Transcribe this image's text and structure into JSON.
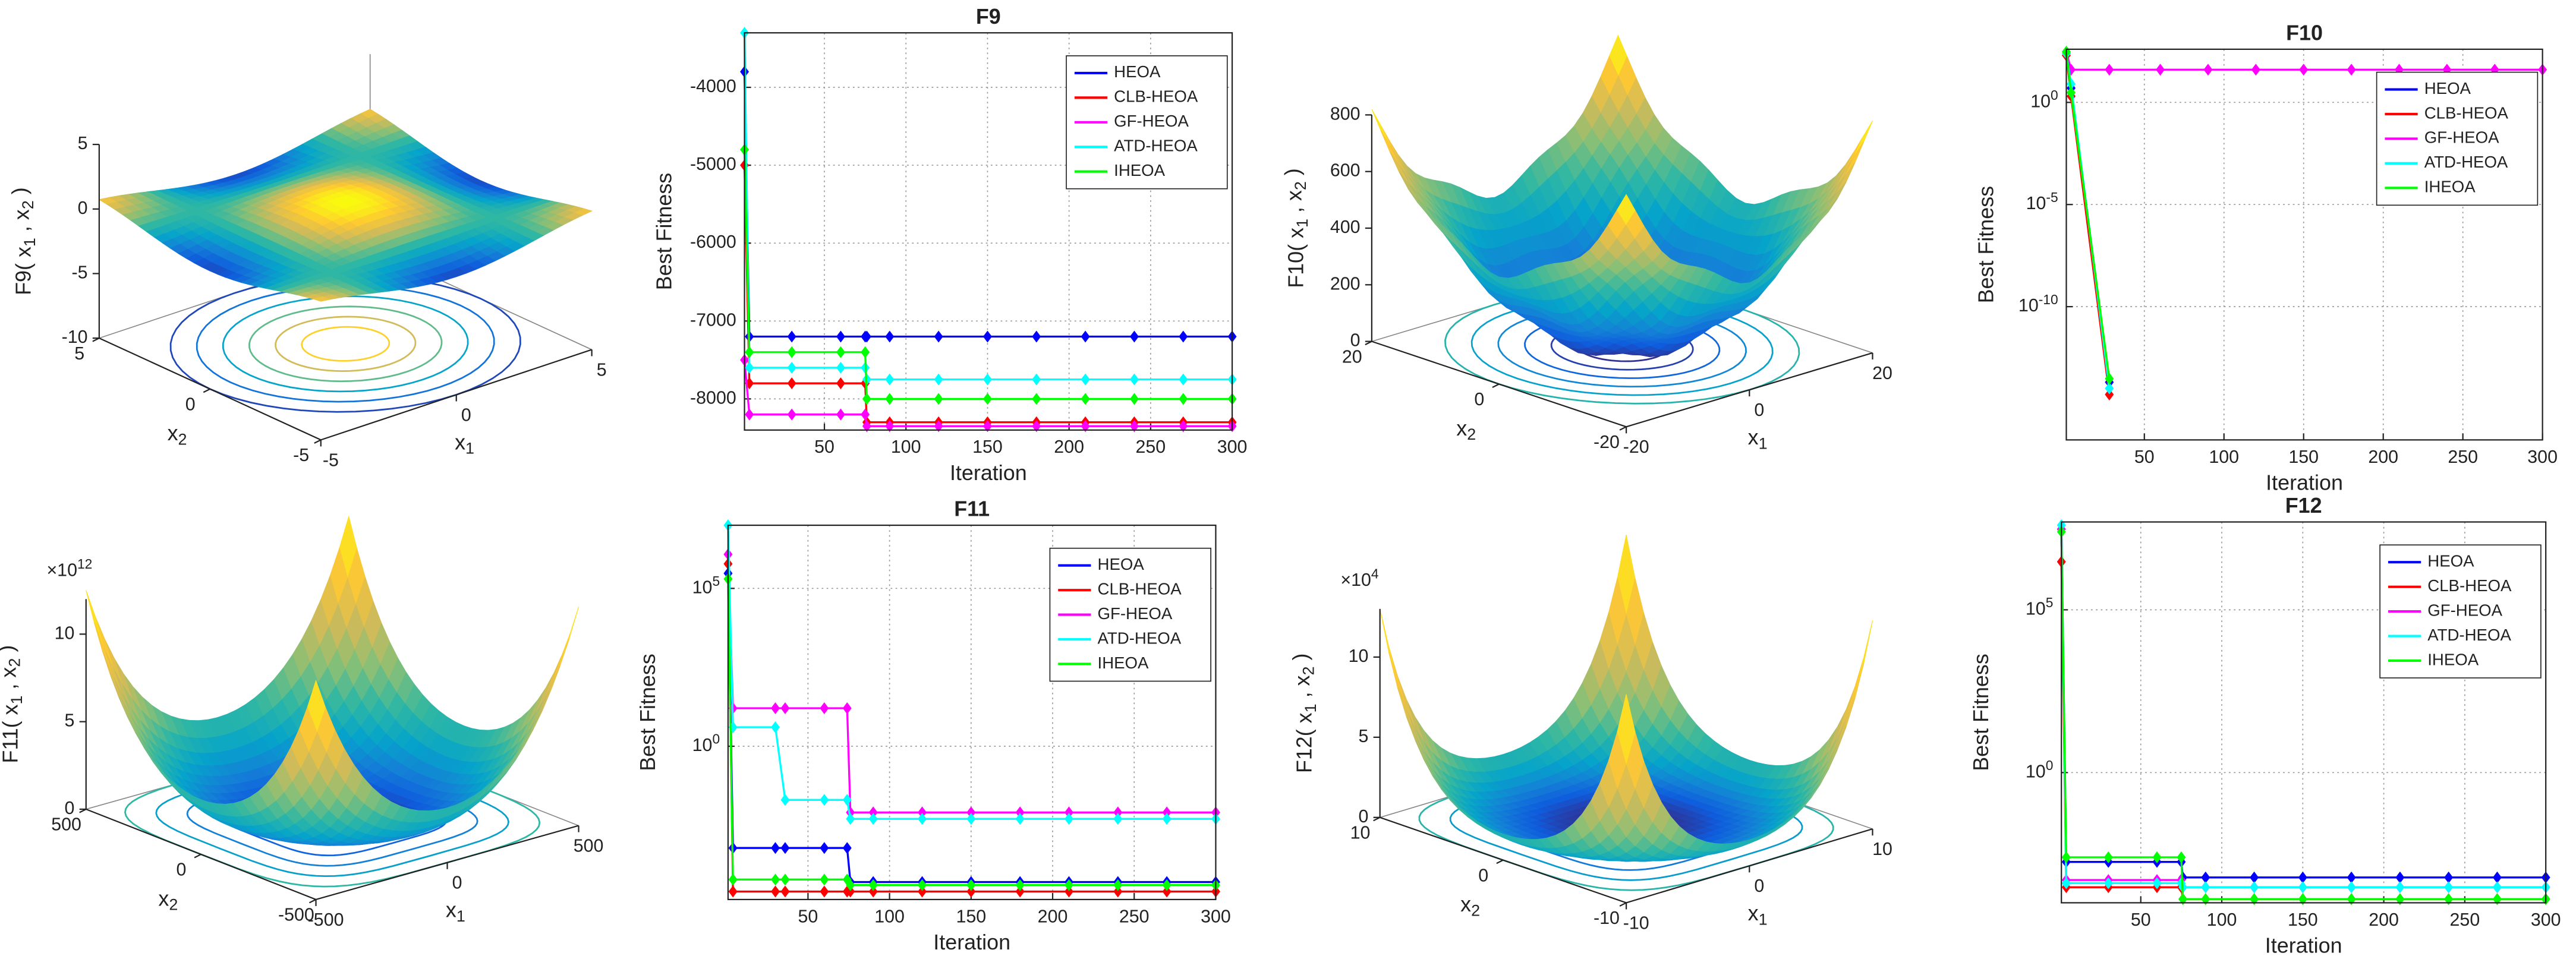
{
  "chart_data": [
    {
      "type": "surface",
      "zlabel": "F9( x_1 , x_2 )",
      "xlabel": "x_1",
      "ylabel": "x_2",
      "xlim": [
        -5,
        5
      ],
      "xticks": [
        -5,
        0,
        5
      ],
      "ylim": [
        -5,
        5
      ],
      "yticks": [
        -5,
        0,
        5
      ],
      "zlim": [
        -10,
        5
      ],
      "zticks": [
        -10,
        -5,
        0,
        5
      ]
    },
    {
      "type": "line",
      "title": "F9",
      "xlabel": "Iteration",
      "ylabel": "Best Fitness",
      "x": [
        1,
        4,
        30,
        60,
        75,
        76,
        90,
        120,
        150,
        180,
        210,
        240,
        270,
        300
      ],
      "xlim": [
        1,
        300
      ],
      "xticks": [
        50,
        100,
        150,
        200,
        250,
        300
      ],
      "ylim": [
        -8400,
        -3300
      ],
      "yticks": [
        -8000,
        -7000,
        -6000,
        -5000,
        -4000
      ],
      "grid": true,
      "legend": "upper right",
      "series": [
        {
          "name": "HEOA",
          "color": "#0000ff",
          "values": [
            -3800,
            -7200,
            -7200,
            -7200,
            -7200,
            -7200,
            -7200,
            -7200,
            -7200,
            -7200,
            -7200,
            -7200,
            -7200,
            -7200
          ]
        },
        {
          "name": "CLB-HEOA",
          "color": "#ff0000",
          "values": [
            -5000,
            -7800,
            -7800,
            -7800,
            -7800,
            -8300,
            -8300,
            -8300,
            -8300,
            -8300,
            -8300,
            -8300,
            -8300,
            -8300
          ]
        },
        {
          "name": "GF-HEOA",
          "color": "#ff00ff",
          "values": [
            -7500,
            -8200,
            -8200,
            -8200,
            -8200,
            -8350,
            -8350,
            -8350,
            -8350,
            -8350,
            -8350,
            -8350,
            -8350,
            -8350
          ]
        },
        {
          "name": "ATD-HEOA",
          "color": "#00ffff",
          "values": [
            -3300,
            -7600,
            -7600,
            -7600,
            -7600,
            -7750,
            -7750,
            -7750,
            -7750,
            -7750,
            -7750,
            -7750,
            -7750,
            -7750
          ]
        },
        {
          "name": "IHEOA",
          "color": "#00ff00",
          "values": [
            -4800,
            -7400,
            -7400,
            -7400,
            -7400,
            -8000,
            -8000,
            -8000,
            -8000,
            -8000,
            -8000,
            -8000,
            -8000,
            -8000
          ]
        }
      ]
    },
    {
      "type": "surface",
      "zlabel": "F10( x_1 , x_2 )",
      "xlabel": "x_1",
      "ylabel": "x_2",
      "xlim": [
        -20,
        20
      ],
      "xticks": [
        -20,
        0,
        20
      ],
      "ylim": [
        -20,
        20
      ],
      "yticks": [
        -20,
        0,
        20
      ],
      "zlim": [
        0,
        800
      ],
      "zticks": [
        0,
        200,
        400,
        600,
        800
      ]
    },
    {
      "type": "line",
      "title": "F10",
      "xlabel": "Iteration",
      "ylabel": "Best Fitness",
      "yscale": "log",
      "x": [
        1,
        4,
        28,
        60,
        90,
        120,
        150,
        180,
        210,
        240,
        270,
        300
      ],
      "xlim": [
        1,
        300
      ],
      "xticks": [
        50,
        100,
        150,
        200,
        250,
        300
      ],
      "ylim": [
        3e-17,
        400
      ],
      "yticks": [
        {
          "value": 1e-10,
          "label": "10^-10"
        },
        {
          "value": 1e-05,
          "label": "10^-5"
        },
        {
          "value": 1,
          "label": "10^0"
        }
      ],
      "grid": true,
      "legend": "upper right",
      "series": [
        {
          "name": "HEOA",
          "color": "#0000ff",
          "values": [
            250,
            5,
            2e-14,
            null,
            null,
            null,
            null,
            null,
            null,
            null,
            null,
            null
          ]
        },
        {
          "name": "CLB-HEOA",
          "color": "#ff0000",
          "values": [
            200,
            2,
            5e-15,
            null,
            null,
            null,
            null,
            null,
            null,
            null,
            null,
            null
          ]
        },
        {
          "name": "GF-HEOA",
          "color": "#ff00ff",
          "values": [
            300,
            40,
            40,
            40,
            40,
            40,
            40,
            40,
            40,
            40,
            40,
            40
          ]
        },
        {
          "name": "ATD-HEOA",
          "color": "#00ffff",
          "values": [
            250,
            8,
            1e-14,
            null,
            null,
            null,
            null,
            null,
            null,
            null,
            null,
            null
          ]
        },
        {
          "name": "IHEOA",
          "color": "#00ff00",
          "values": [
            300,
            3,
            3e-14,
            null,
            null,
            null,
            null,
            null,
            null,
            null,
            null,
            null
          ]
        }
      ]
    },
    {
      "type": "surface",
      "zlabel": "F11( x_1 , x_2 )",
      "zmultiplier": "×10^12",
      "xlabel": "x_1",
      "ylabel": "x_2",
      "xlim": [
        -500,
        500
      ],
      "xticks": [
        -500,
        0,
        500
      ],
      "ylim": [
        -500,
        500
      ],
      "yticks": [
        -500,
        0,
        500
      ],
      "zlim": [
        0,
        12
      ],
      "zticks": [
        0,
        5,
        10
      ]
    },
    {
      "type": "line",
      "title": "F11",
      "xlabel": "Iteration",
      "ylabel": "Best Fitness",
      "yscale": "log",
      "x": [
        1,
        4,
        30,
        36,
        60,
        74,
        76,
        90,
        120,
        150,
        180,
        210,
        240,
        270,
        300
      ],
      "xlim": [
        1,
        300
      ],
      "xticks": [
        50,
        100,
        150,
        200,
        250,
        300
      ],
      "ylim": [
        1.4e-05,
        10000000.0
      ],
      "yticks": [
        {
          "value": 1,
          "label": "10^0"
        },
        {
          "value": 100000,
          "label": "10^5"
        }
      ],
      "grid": true,
      "legend": "upper right",
      "series": [
        {
          "name": "HEOA",
          "color": "#0000ff",
          "values": [
            300000,
            0.0006,
            0.0006,
            0.0006,
            0.0006,
            0.0006,
            5e-05,
            5e-05,
            5e-05,
            5e-05,
            5e-05,
            5e-05,
            5e-05,
            5e-05,
            5e-05
          ]
        },
        {
          "name": "CLB-HEOA",
          "color": "#ff0000",
          "values": [
            600000,
            2.5e-05,
            2.5e-05,
            2.5e-05,
            2.5e-05,
            2.5e-05,
            2.5e-05,
            2.5e-05,
            2.5e-05,
            2.5e-05,
            2.5e-05,
            2.5e-05,
            2.5e-05,
            2.5e-05,
            2.5e-05
          ]
        },
        {
          "name": "GF-HEOA",
          "color": "#ff00ff",
          "values": [
            1200000,
            16,
            16,
            16,
            16,
            16,
            0.008,
            0.008,
            0.008,
            0.008,
            0.008,
            0.008,
            0.008,
            0.008,
            0.008
          ]
        },
        {
          "name": "ATD-HEOA",
          "color": "#00ffff",
          "values": [
            10000000,
            4,
            4,
            0.02,
            0.02,
            0.02,
            0.005,
            0.005,
            0.005,
            0.005,
            0.005,
            0.005,
            0.005,
            0.005,
            0.005
          ]
        },
        {
          "name": "IHEOA",
          "color": "#00ff00",
          "values": [
            200000,
            6e-05,
            6e-05,
            6e-05,
            6e-05,
            6e-05,
            4e-05,
            4e-05,
            4e-05,
            4e-05,
            4e-05,
            4e-05,
            4e-05,
            4e-05,
            4e-05
          ]
        }
      ]
    },
    {
      "type": "surface",
      "zlabel": "F12( x_1 , x_2 )",
      "zmultiplier": "×10^4",
      "xlabel": "x_1",
      "ylabel": "x_2",
      "xlim": [
        -10,
        10
      ],
      "xticks": [
        -10,
        0,
        10
      ],
      "ylim": [
        -10,
        10
      ],
      "yticks": [
        -10,
        0,
        10
      ],
      "zlim": [
        0,
        13
      ],
      "zticks": [
        0,
        5,
        10
      ]
    },
    {
      "type": "line",
      "title": "F12",
      "xlabel": "Iteration",
      "ylabel": "Best Fitness",
      "yscale": "log",
      "x": [
        1,
        4,
        30,
        60,
        75,
        76,
        90,
        120,
        150,
        180,
        210,
        240,
        270,
        300
      ],
      "xlim": [
        1,
        300
      ],
      "xticks": [
        50,
        100,
        150,
        200,
        250,
        300
      ],
      "ylim": [
        0.0001,
        50000000.0
      ],
      "yticks": [
        {
          "value": 1,
          "label": "10^0"
        },
        {
          "value": 100000,
          "label": "10^5"
        }
      ],
      "grid": true,
      "legend": "upper right",
      "series": [
        {
          "name": "HEOA",
          "color": "#0000ff",
          "values": [
            30000000,
            0.0018,
            0.0018,
            0.0018,
            0.0018,
            0.0006,
            0.0006,
            0.0006,
            0.0006,
            0.0006,
            0.0006,
            0.0006,
            0.0006,
            0.0006
          ]
        },
        {
          "name": "CLB-HEOA",
          "color": "#ff0000",
          "values": [
            3000000,
            0.0003,
            0.0003,
            0.0003,
            0.0003,
            0.00013,
            0.00013,
            0.00013,
            0.00013,
            0.00013,
            0.00013,
            0.00013,
            0.00013,
            0.00013
          ]
        },
        {
          "name": "GF-HEOA",
          "color": "#ff00ff",
          "values": [
            30000000,
            0.0005,
            0.0005,
            0.0005,
            0.0005,
            0.0003,
            0.0003,
            0.0003,
            0.0003,
            0.0003,
            0.0003,
            0.0003,
            0.0003,
            0.0003
          ]
        },
        {
          "name": "ATD-HEOA",
          "color": "#00ffff",
          "values": [
            40000000,
            0.0004,
            0.0004,
            0.0004,
            0.0004,
            0.0003,
            0.0003,
            0.0003,
            0.0003,
            0.0003,
            0.0003,
            0.0003,
            0.0003,
            0.0003
          ]
        },
        {
          "name": "IHEOA",
          "color": "#00ff00",
          "values": [
            25000000,
            0.0025,
            0.0025,
            0.0025,
            0.0025,
            0.00013,
            0.00013,
            0.00013,
            0.00013,
            0.00013,
            0.00013,
            0.00013,
            0.00013,
            0.00013
          ]
        }
      ]
    }
  ]
}
